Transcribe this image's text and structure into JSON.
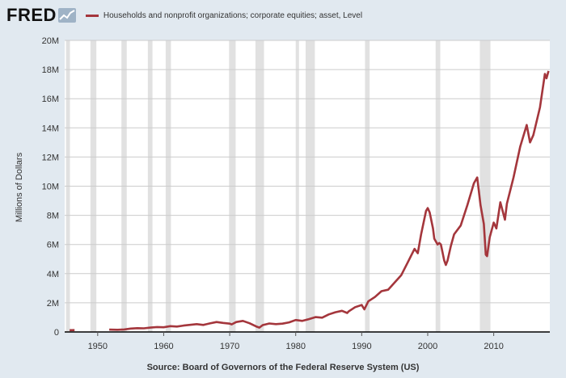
{
  "header": {
    "logo_text": "FRED",
    "legend_label": "Households and nonprofit organizations; corporate equities; asset, Level"
  },
  "colors": {
    "background": "#e1e9f0",
    "plot_background": "#ffffff",
    "series": "#a4363c",
    "recession": "#e1e1e1",
    "gridline": "#cccccc",
    "text": "#333333"
  },
  "icons": {
    "logo_chart": "line-chart-icon"
  },
  "source_text": "Source: Board of Governors of the Federal Reserve System (US)",
  "chart_data": {
    "type": "line",
    "xlabel": "",
    "ylabel": "Millions of Dollars",
    "xlim": [
      1945.0,
      2018.5
    ],
    "ylim": [
      0,
      20000000
    ],
    "x_ticks": [
      1950,
      1960,
      1970,
      1980,
      1990,
      2000,
      2010
    ],
    "x_tick_labels": [
      "1950",
      "1960",
      "1970",
      "1980",
      "1990",
      "2000",
      "2010"
    ],
    "y_ticks": [
      0,
      2000000,
      4000000,
      6000000,
      8000000,
      10000000,
      12000000,
      14000000,
      16000000,
      18000000,
      20000000
    ],
    "y_tick_labels": [
      "0",
      "2M",
      "4M",
      "6M",
      "8M",
      "10M",
      "12M",
      "14M",
      "16M",
      "18M",
      "20M"
    ],
    "grid": true,
    "recessions": [
      [
        1945.2,
        1945.8
      ],
      [
        1948.9,
        1949.8
      ],
      [
        1953.6,
        1954.4
      ],
      [
        1957.6,
        1958.3
      ],
      [
        1960.3,
        1961.1
      ],
      [
        1969.9,
        1970.9
      ],
      [
        1973.9,
        1975.2
      ],
      [
        1980.0,
        1980.5
      ],
      [
        1981.5,
        1982.9
      ],
      [
        1990.5,
        1991.2
      ],
      [
        2001.2,
        2001.9
      ],
      [
        2007.9,
        2009.5
      ]
    ],
    "series": [
      {
        "name": "Households and nonprofit organizations; corporate equities; asset, Level",
        "segments": [
          [
            [
              1945.75,
              120000
            ],
            [
              1946.5,
              130000
            ]
          ],
          [
            [
              1951.75,
              160000
            ],
            [
              1953,
              150000
            ],
            [
              1954,
              170000
            ],
            [
              1955,
              230000
            ],
            [
              1956,
              260000
            ],
            [
              1957,
              250000
            ],
            [
              1958,
              300000
            ],
            [
              1959,
              340000
            ],
            [
              1960,
              320000
            ],
            [
              1961,
              400000
            ],
            [
              1962,
              370000
            ],
            [
              1963,
              440000
            ],
            [
              1964,
              490000
            ],
            [
              1965,
              540000
            ],
            [
              1966,
              480000
            ],
            [
              1967,
              590000
            ],
            [
              1968,
              680000
            ],
            [
              1969,
              620000
            ],
            [
              1970,
              570000
            ],
            [
              1970.3,
              520000
            ],
            [
              1971,
              680000
            ],
            [
              1972,
              760000
            ],
            [
              1973,
              600000
            ],
            [
              1974,
              380000
            ],
            [
              1974.5,
              300000
            ],
            [
              1975,
              470000
            ],
            [
              1976,
              580000
            ],
            [
              1977,
              540000
            ],
            [
              1978,
              570000
            ],
            [
              1979,
              660000
            ],
            [
              1980,
              820000
            ],
            [
              1981,
              760000
            ],
            [
              1982,
              880000
            ],
            [
              1983,
              1020000
            ],
            [
              1984,
              980000
            ],
            [
              1985,
              1200000
            ],
            [
              1986,
              1350000
            ],
            [
              1987,
              1450000
            ],
            [
              1987.8,
              1300000
            ],
            [
              1988,
              1400000
            ],
            [
              1989,
              1700000
            ],
            [
              1990,
              1850000
            ],
            [
              1990.4,
              1550000
            ],
            [
              1991,
              2100000
            ],
            [
              1992,
              2400000
            ],
            [
              1993,
              2800000
            ],
            [
              1994,
              2900000
            ],
            [
              1995,
              3400000
            ],
            [
              1996,
              3900000
            ],
            [
              1997,
              4800000
            ],
            [
              1998,
              5700000
            ],
            [
              1998.5,
              5400000
            ],
            [
              1999,
              6700000
            ],
            [
              1999.75,
              8300000
            ],
            [
              2000,
              8500000
            ],
            [
              2000.3,
              8200000
            ],
            [
              2000.8,
              7100000
            ],
            [
              2001,
              6400000
            ],
            [
              2001.5,
              6000000
            ],
            [
              2001.75,
              6100000
            ],
            [
              2002,
              6000000
            ],
            [
              2002.5,
              4900000
            ],
            [
              2002.75,
              4600000
            ],
            [
              2003,
              4900000
            ],
            [
              2003.5,
              5900000
            ],
            [
              2004,
              6700000
            ],
            [
              2005,
              7300000
            ],
            [
              2006,
              8700000
            ],
            [
              2007,
              10200000
            ],
            [
              2007.5,
              10600000
            ],
            [
              2008,
              8700000
            ],
            [
              2008.5,
              7400000
            ],
            [
              2008.8,
              5300000
            ],
            [
              2009,
              5200000
            ],
            [
              2009.4,
              6500000
            ],
            [
              2010,
              7500000
            ],
            [
              2010.4,
              7100000
            ],
            [
              2011,
              8900000
            ],
            [
              2011.7,
              7700000
            ],
            [
              2012,
              8800000
            ],
            [
              2013,
              10600000
            ],
            [
              2014,
              12700000
            ],
            [
              2015,
              14200000
            ],
            [
              2015.5,
              13000000
            ],
            [
              2016,
              13500000
            ],
            [
              2017,
              15400000
            ],
            [
              2017.75,
              17700000
            ],
            [
              2018,
              17400000
            ],
            [
              2018.3,
              17900000
            ]
          ]
        ]
      }
    ]
  }
}
